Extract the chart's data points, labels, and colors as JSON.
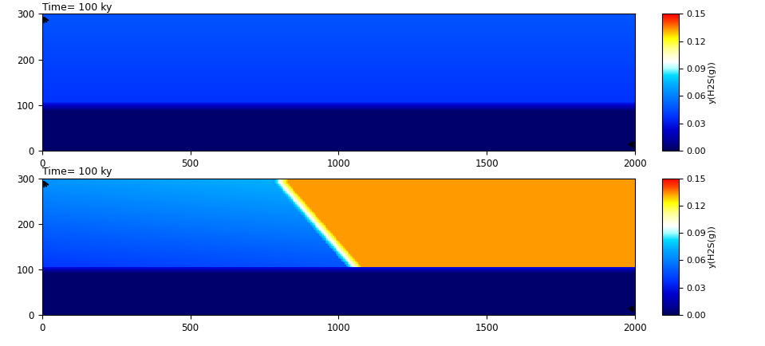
{
  "title_text": "Time= 100 ky",
  "colorbar_label": "y(H2S(g))",
  "colorbar_ticks": [
    0,
    0.03,
    0.06,
    0.09,
    0.12,
    0.15
  ],
  "vmin": 0,
  "vmax": 0.15,
  "xlim": [
    0,
    2000
  ],
  "ylim": [
    0,
    300
  ],
  "xticks": [
    0,
    500,
    1000,
    1500,
    2000
  ],
  "yticks": [
    0,
    100,
    200,
    300
  ],
  "nx": 400,
  "ny": 120,
  "background_color": "#ffffff"
}
